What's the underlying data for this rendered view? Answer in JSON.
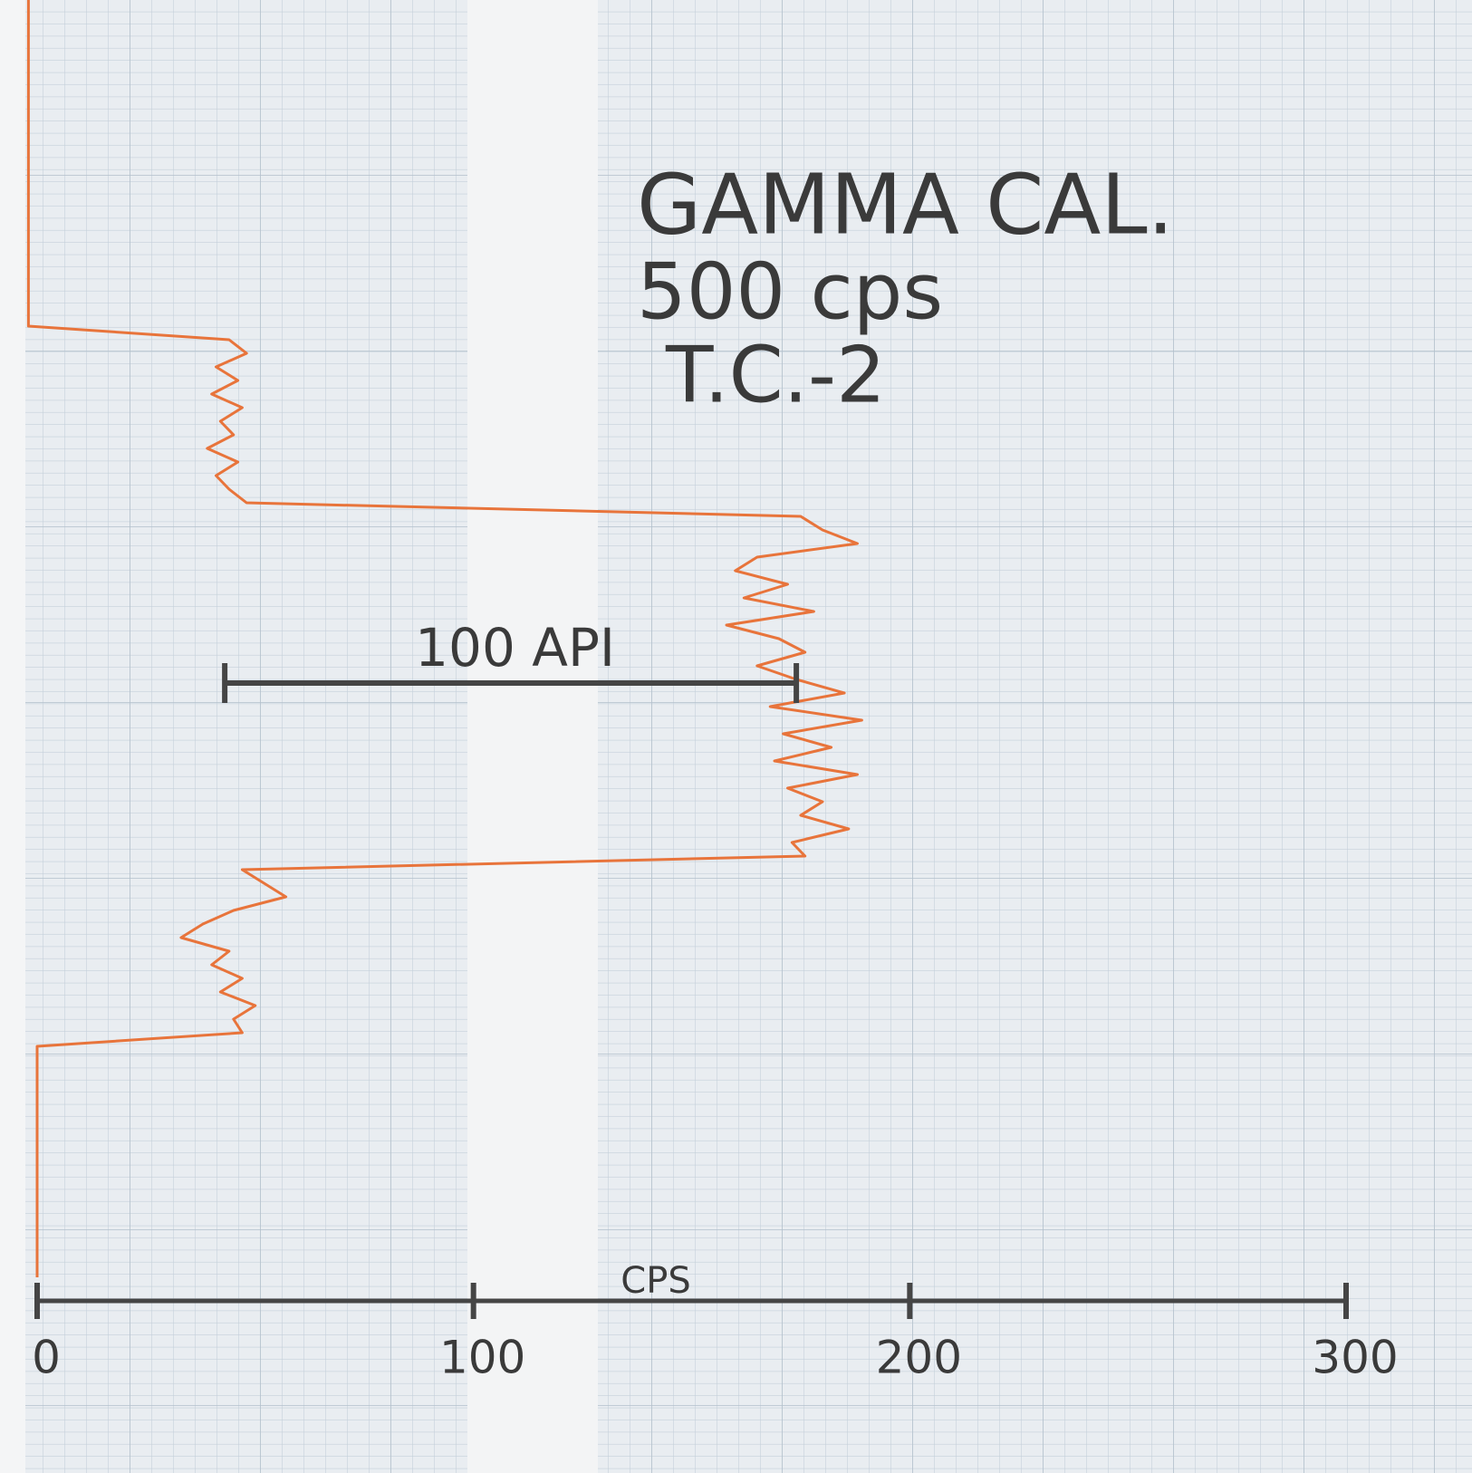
{
  "chart_data": {
    "type": "line",
    "title": "GAMMA CAL.",
    "subtitle": "500 cps",
    "note": "T.C.-2",
    "x_label": "CPS",
    "xlim": [
      0,
      300
    ],
    "xticks": [
      0,
      100,
      200,
      300
    ],
    "scale_bar": {
      "label": "100 API",
      "start": 43,
      "end": 174
    },
    "series": [
      {
        "color": "#e8743b",
        "values": [
          -2,
          -2,
          -2,
          -2,
          -2,
          -2,
          -2,
          -2,
          -2,
          -2,
          -2,
          -2,
          -2,
          -2,
          -2,
          -2,
          -2,
          -2,
          -2,
          -2,
          -2,
          -2,
          -2,
          -2,
          -2,
          44,
          48,
          41,
          46,
          40,
          47,
          42,
          45,
          39,
          46,
          41,
          44,
          48,
          175,
          180,
          188,
          165,
          160,
          172,
          162,
          178,
          158,
          170,
          176,
          165,
          174,
          185,
          168,
          189,
          171,
          182,
          169,
          188,
          172,
          180,
          175,
          186,
          173,
          176,
          47,
          52,
          57,
          45,
          38,
          33,
          44,
          40,
          47,
          42,
          50,
          45,
          47,
          0,
          0,
          0,
          0,
          0,
          0,
          0,
          0,
          0,
          0,
          0,
          0,
          0,
          0,
          0,
          0,
          0,
          0
        ]
      }
    ]
  }
}
